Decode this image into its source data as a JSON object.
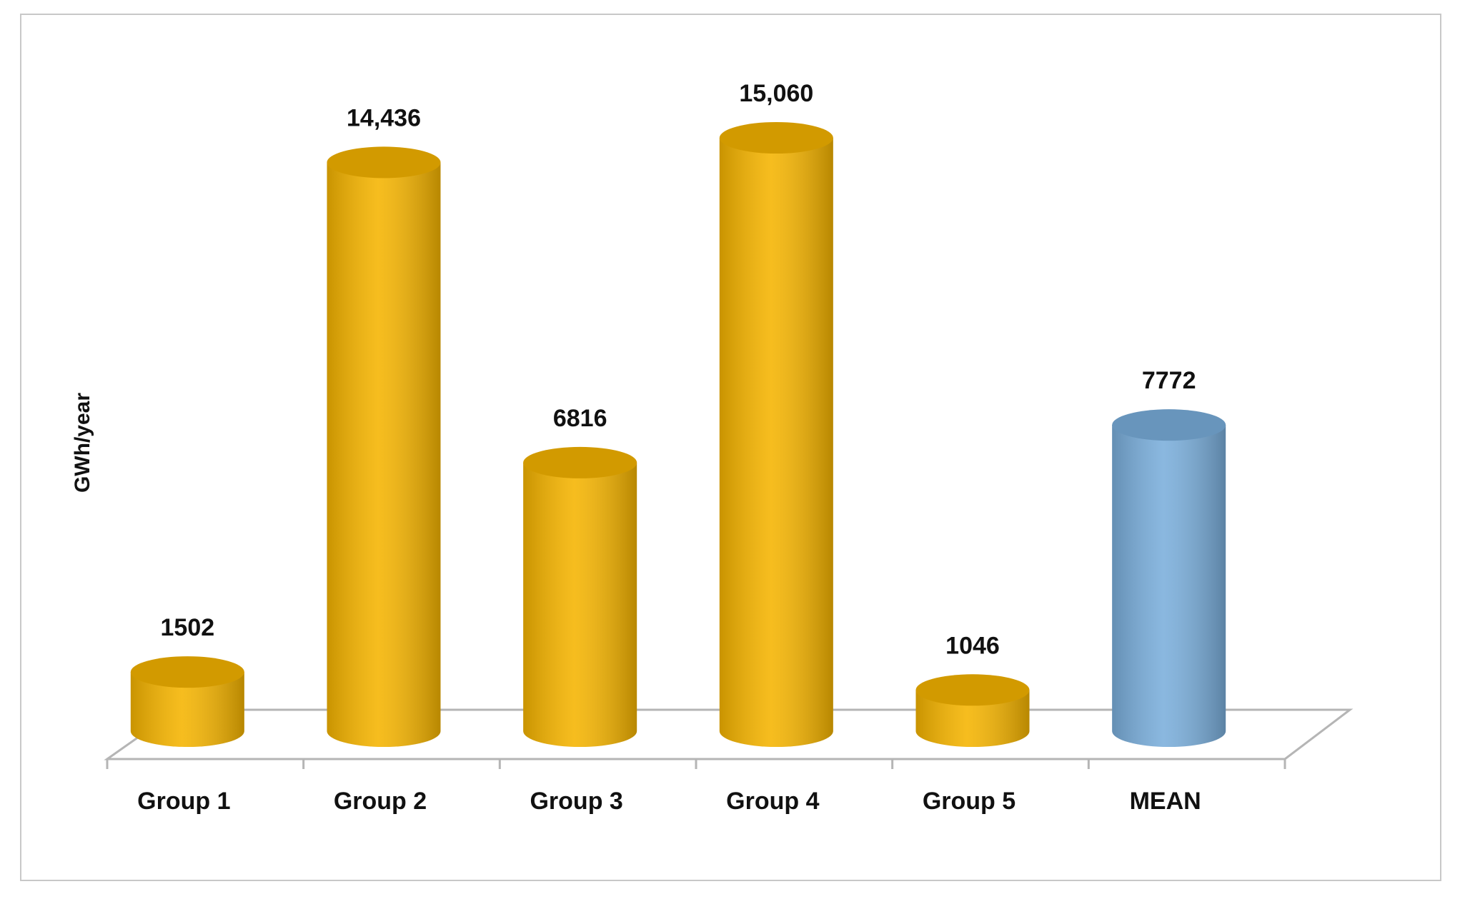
{
  "chart_data": {
    "type": "bar",
    "style": "cylinder-3d",
    "y_label": "GWh/year",
    "categories": [
      "Group 1",
      "Group 2",
      "Group 3",
      "Group 4",
      "Group 5",
      "MEAN"
    ],
    "values": [
      1502,
      14436,
      6816,
      15060,
      1046,
      7772
    ],
    "value_labels": [
      "1502",
      "14,436",
      "6816",
      "15,060",
      "1046",
      "7772"
    ],
    "colors": [
      "#f5b400",
      "#f5b400",
      "#f5b400",
      "#f5b400",
      "#f5b400",
      "#7aaedb"
    ]
  }
}
